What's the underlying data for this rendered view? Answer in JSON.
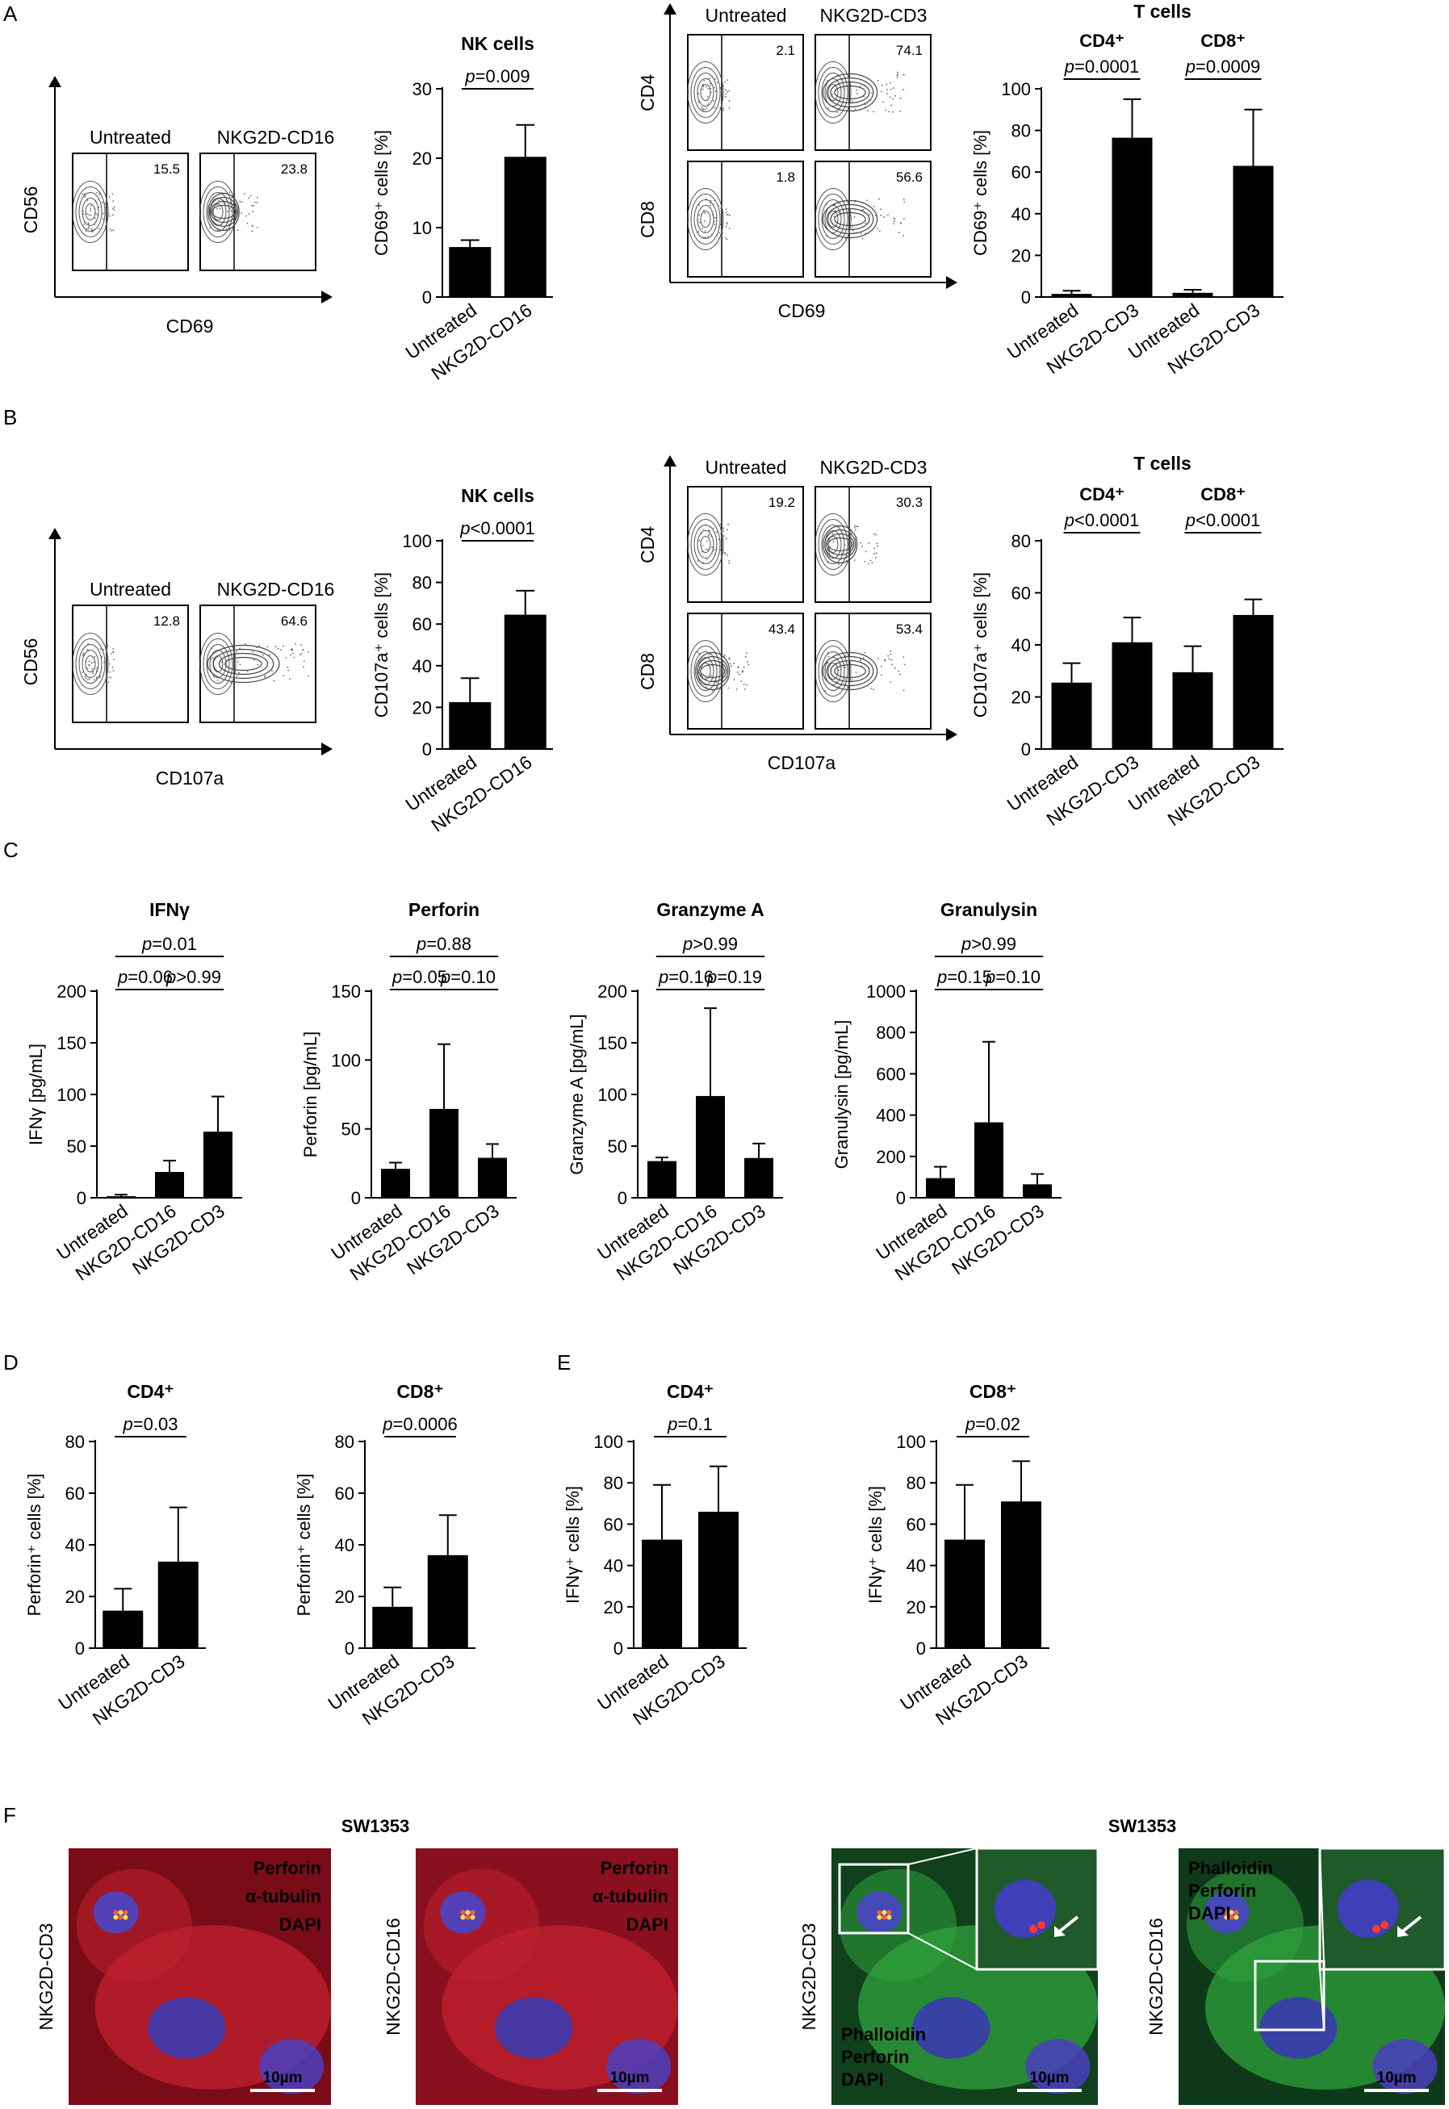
{
  "panels": {
    "A": {
      "letter": "A",
      "flow_nk": {
        "ylabel": "CD56",
        "xlabel": "CD69",
        "plots": [
          {
            "label": "Untreated",
            "value": "15.5"
          },
          {
            "label": "NKG2D-CD16",
            "value": "23.8"
          }
        ]
      },
      "flow_t": {
        "ylabels": [
          "CD4",
          "CD8"
        ],
        "xlabel": "CD69",
        "cols": [
          "Untreated",
          "NKG2D-CD3"
        ],
        "values": [
          [
            "2.1",
            "74.1"
          ],
          [
            "1.8",
            "56.6"
          ]
        ]
      }
    },
    "B": {
      "letter": "B",
      "flow_nk": {
        "ylabel": "CD56",
        "xlabel": "CD107a",
        "plots": [
          {
            "label": "Untreated",
            "value": "12.8"
          },
          {
            "label": "NKG2D-CD16",
            "value": "64.6"
          }
        ]
      },
      "flow_t": {
        "ylabels": [
          "CD4",
          "CD8"
        ],
        "xlabel": "CD107a",
        "cols": [
          "Untreated",
          "NKG2D-CD3"
        ],
        "values": [
          [
            "19.2",
            "30.3"
          ],
          [
            "43.4",
            "53.4"
          ]
        ]
      }
    },
    "C": {
      "letter": "C"
    },
    "D": {
      "letter": "D"
    },
    "E": {
      "letter": "E"
    },
    "F": {
      "letter": "F",
      "left_title": "SW1353",
      "right_title": "SW1353",
      "images": [
        {
          "side_label": "NKG2D-CD3",
          "legend": [
            [
              "Perforin",
              "#3dff5a"
            ],
            [
              "α-tubulin",
              "#ff2a2a"
            ],
            [
              "DAPI",
              "#2a6bff"
            ]
          ],
          "scale": "10µm",
          "bg": "#7a0c18"
        },
        {
          "side_label": "NKG2D-CD16",
          "legend": [
            [
              "Perforin",
              "#3dff5a"
            ],
            [
              "α-tubulin",
              "#ff2a2a"
            ],
            [
              "DAPI",
              "#2a6bff"
            ]
          ],
          "scale": "10µm",
          "bg": "#8a1020"
        },
        {
          "side_label": "NKG2D-CD3",
          "legend": [
            [
              "Phalloidin",
              "#3dff5a"
            ],
            [
              "Perforin",
              "#ff2a2a"
            ],
            [
              "DAPI",
              "#2a6bff"
            ]
          ],
          "scale": "10µm",
          "bg": "#10401c"
        },
        {
          "side_label": "NKG2D-CD16",
          "legend": [
            [
              "Phalloidin",
              "#3dff5a"
            ],
            [
              "Perforin",
              "#ff2a2a"
            ],
            [
              "DAPI",
              "#2a6bff"
            ]
          ],
          "scale": "10µm",
          "bg": "#0e3a1a"
        }
      ]
    }
  },
  "chart_data": [
    {
      "id": "A_nk",
      "type": "bar",
      "title": "NK cells",
      "ylabel": "CD69⁺ cells [%]",
      "ylim": [
        0,
        30
      ],
      "yticks": [
        0,
        10,
        20,
        30
      ],
      "categories": [
        "Untreated",
        "NKG2D-CD16"
      ],
      "values": [
        7.2,
        20.2
      ],
      "errors": [
        1.0,
        4.6
      ],
      "comparisons": [
        {
          "from": 0,
          "to": 1,
          "label": "p=0.009"
        }
      ]
    },
    {
      "id": "A_t",
      "type": "bar",
      "title": "T cells",
      "groups": [
        "CD4⁺",
        "CD8⁺"
      ],
      "ylabel": "CD69⁺ cells [%]",
      "ylim": [
        0,
        100
      ],
      "yticks": [
        0,
        20,
        40,
        60,
        80,
        100
      ],
      "categories": [
        "Untreated",
        "NKG2D-CD3",
        "Untreated",
        "NKG2D-CD3"
      ],
      "values": [
        1.5,
        76.5,
        2.0,
        63.0
      ],
      "errors": [
        1.5,
        18.5,
        1.5,
        27.0
      ],
      "comparisons": [
        {
          "from": 0,
          "to": 1,
          "label": "p=0.0001"
        },
        {
          "from": 2,
          "to": 3,
          "label": "p=0.0009"
        }
      ]
    },
    {
      "id": "B_nk",
      "type": "bar",
      "title": "NK cells",
      "ylabel": "CD107a⁺ cells [%]",
      "ylim": [
        0,
        100
      ],
      "yticks": [
        0,
        20,
        40,
        60,
        80,
        100
      ],
      "categories": [
        "Untreated",
        "NKG2D-CD16"
      ],
      "values": [
        22.5,
        64.5
      ],
      "errors": [
        11.5,
        11.5
      ],
      "comparisons": [
        {
          "from": 0,
          "to": 1,
          "label": "p<0.0001"
        }
      ]
    },
    {
      "id": "B_t",
      "type": "bar",
      "title": "T cells",
      "groups": [
        "CD4⁺",
        "CD8⁺"
      ],
      "ylabel": "CD107a⁺ cells [%]",
      "ylim": [
        0,
        80
      ],
      "yticks": [
        0,
        20,
        40,
        60,
        80
      ],
      "categories": [
        "Untreated",
        "NKG2D-CD3",
        "Untreated",
        "NKG2D-CD3"
      ],
      "values": [
        25.5,
        41.0,
        29.5,
        51.5
      ],
      "errors": [
        7.5,
        9.5,
        10.0,
        6.0
      ],
      "comparisons": [
        {
          "from": 0,
          "to": 1,
          "label": "p<0.0001"
        },
        {
          "from": 2,
          "to": 3,
          "label": "p<0.0001"
        }
      ]
    },
    {
      "id": "C_ifng",
      "type": "bar",
      "title": "IFNγ",
      "ylabel": "IFNγ [pg/mL]",
      "ylim": [
        0,
        200
      ],
      "yticks": [
        0,
        50,
        100,
        150,
        200
      ],
      "categories": [
        "Untreated",
        "NKG2D-CD16",
        "NKG2D-CD3"
      ],
      "values": [
        1.5,
        25.0,
        64.0
      ],
      "errors": [
        1.5,
        11.0,
        34.0
      ],
      "comparisons": [
        {
          "from": 0,
          "to": 2,
          "label": "p=0.01"
        },
        {
          "from": 0,
          "to": 1,
          "label": "p=0.06"
        },
        {
          "from": 1,
          "to": 2,
          "label": "p>0.99"
        }
      ]
    },
    {
      "id": "C_perf",
      "type": "bar",
      "title": "Perforin",
      "ylabel": "Perforin [pg/mL]",
      "ylim": [
        0,
        150
      ],
      "yticks": [
        0,
        50,
        100,
        150
      ],
      "categories": [
        "Untreated",
        "NKG2D-CD16",
        "NKG2D-CD3"
      ],
      "values": [
        21.0,
        64.5,
        29.0
      ],
      "errors": [
        4.5,
        47.0,
        10.0
      ],
      "comparisons": [
        {
          "from": 0,
          "to": 2,
          "label": "p=0.88"
        },
        {
          "from": 0,
          "to": 1,
          "label": "p=0.05"
        },
        {
          "from": 1,
          "to": 2,
          "label": "p=0.10"
        }
      ]
    },
    {
      "id": "C_gza",
      "type": "bar",
      "title": "Granzyme A",
      "ylabel": "Granzyme A [pg/mL]",
      "ylim": [
        0,
        200
      ],
      "yticks": [
        0,
        50,
        100,
        150,
        200
      ],
      "categories": [
        "Untreated",
        "NKG2D-CD16",
        "NKG2D-CD3"
      ],
      "values": [
        35.5,
        98.5,
        38.5
      ],
      "errors": [
        3.5,
        85.0,
        14.0
      ],
      "comparisons": [
        {
          "from": 0,
          "to": 2,
          "label": "p>0.99"
        },
        {
          "from": 0,
          "to": 1,
          "label": "p=0.16"
        },
        {
          "from": 1,
          "to": 2,
          "label": "p=0.19"
        }
      ]
    },
    {
      "id": "C_gnly",
      "type": "bar",
      "title": "Granulysin",
      "ylabel": "Granulysin [pg/mL]",
      "ylim": [
        0,
        1000
      ],
      "yticks": [
        0,
        200,
        400,
        600,
        800,
        1000
      ],
      "categories": [
        "Untreated",
        "NKG2D-CD16",
        "NKG2D-CD3"
      ],
      "values": [
        95.0,
        365.0,
        65.0
      ],
      "errors": [
        55.0,
        390.0,
        50.0
      ],
      "comparisons": [
        {
          "from": 0,
          "to": 2,
          "label": "p>0.99"
        },
        {
          "from": 0,
          "to": 1,
          "label": "p=0.15"
        },
        {
          "from": 1,
          "to": 2,
          "label": "p=0.10"
        }
      ]
    },
    {
      "id": "D_cd4",
      "type": "bar",
      "title": "CD4⁺",
      "ylabel": "Perforin⁺ cells [%]",
      "ylim": [
        0,
        80
      ],
      "yticks": [
        0,
        20,
        40,
        60,
        80
      ],
      "categories": [
        "Untreated",
        "NKG2D-CD3"
      ],
      "values": [
        14.5,
        33.5
      ],
      "errors": [
        8.5,
        21.0
      ],
      "comparisons": [
        {
          "from": 0,
          "to": 1,
          "label": "p=0.03"
        }
      ]
    },
    {
      "id": "D_cd8",
      "type": "bar",
      "title": "CD8⁺",
      "ylabel": "Perforin⁺ cells [%]",
      "ylim": [
        0,
        80
      ],
      "yticks": [
        0,
        20,
        40,
        60,
        80
      ],
      "categories": [
        "Untreated",
        "NKG2D-CD3"
      ],
      "values": [
        16.0,
        36.0
      ],
      "errors": [
        7.5,
        15.5
      ],
      "comparisons": [
        {
          "from": 0,
          "to": 1,
          "label": "p=0.0006"
        }
      ]
    },
    {
      "id": "E_cd4",
      "type": "bar",
      "title": "CD4⁺",
      "ylabel": "IFNγ⁺ cells [%]",
      "ylim": [
        0,
        100
      ],
      "yticks": [
        0,
        20,
        40,
        60,
        80,
        100
      ],
      "categories": [
        "Untreated",
        "NKG2D-CD3"
      ],
      "values": [
        52.5,
        66.0
      ],
      "errors": [
        26.5,
        22.0
      ],
      "comparisons": [
        {
          "from": 0,
          "to": 1,
          "label": "p=0.1"
        }
      ]
    },
    {
      "id": "E_cd8",
      "type": "bar",
      "title": "CD8⁺",
      "ylabel": "IFNγ⁺ cells [%]",
      "ylim": [
        0,
        100
      ],
      "yticks": [
        0,
        20,
        40,
        60,
        80,
        100
      ],
      "categories": [
        "Untreated",
        "NKG2D-CD3"
      ],
      "values": [
        52.5,
        71.0
      ],
      "errors": [
        26.5,
        19.5
      ],
      "comparisons": [
        {
          "from": 0,
          "to": 1,
          "label": "p=0.02"
        }
      ]
    }
  ]
}
